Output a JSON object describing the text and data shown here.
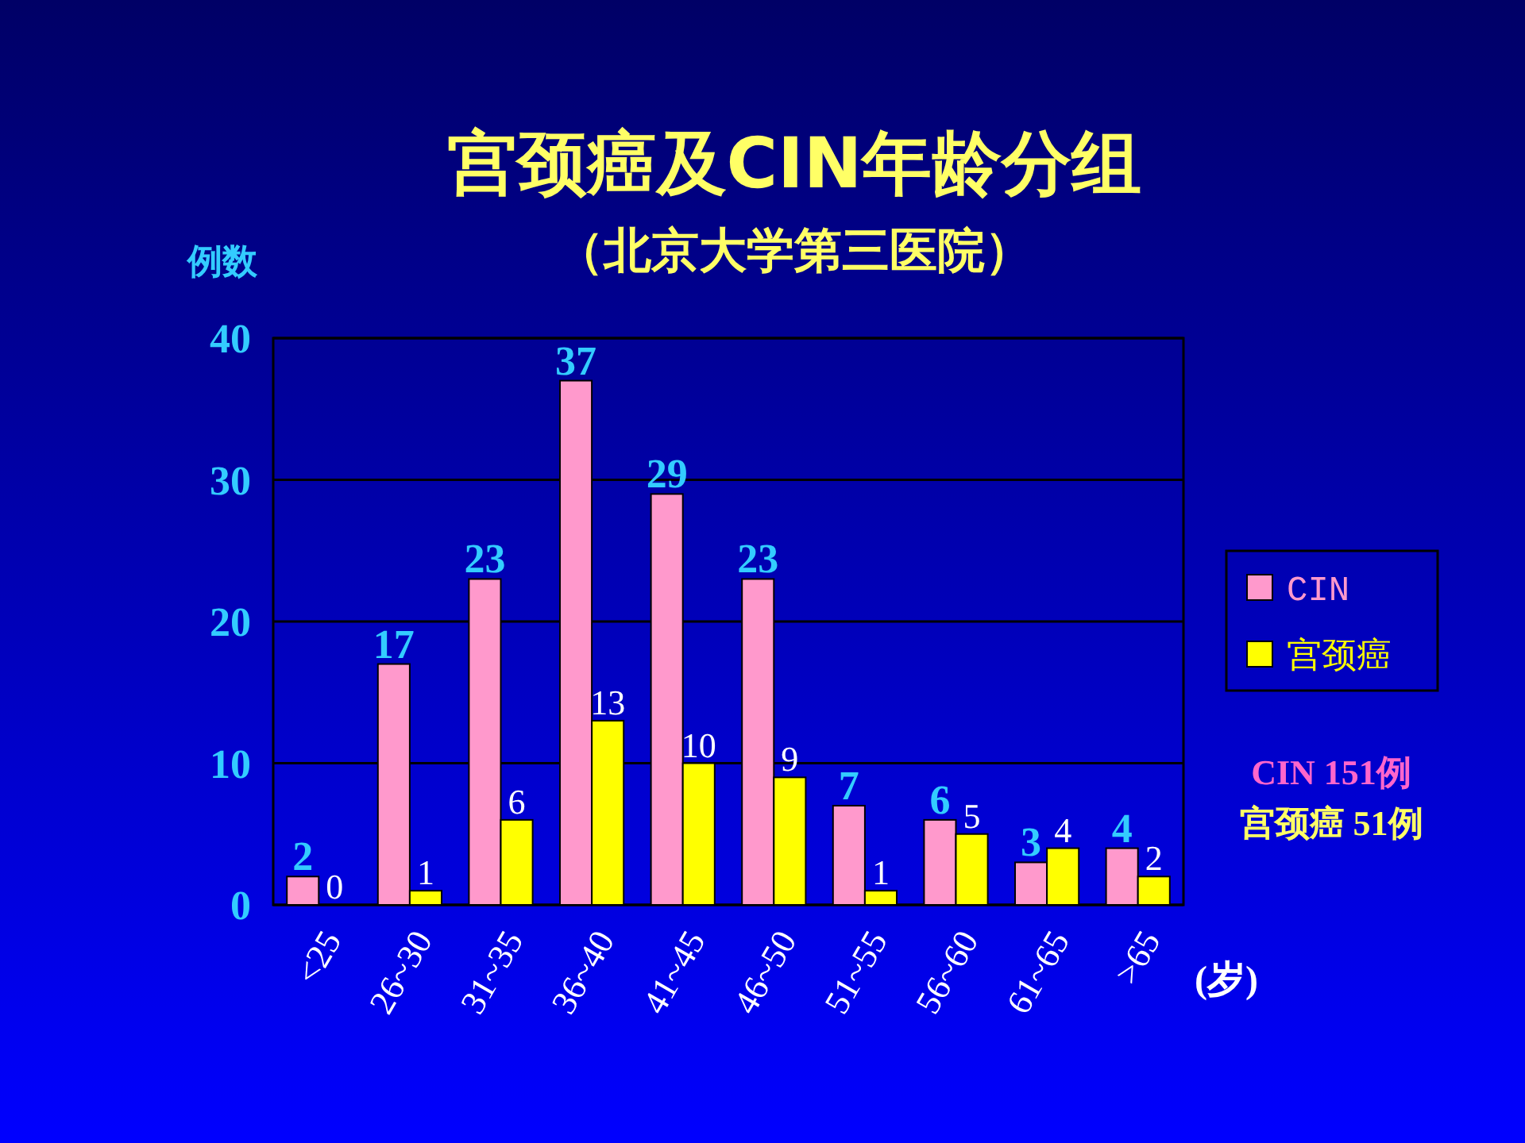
{
  "chart_data": {
    "type": "bar",
    "title": "宫颈癌及CIN年龄分组",
    "subtitle": "（北京大学第三医院）",
    "ylabel": "例数",
    "xlabel": "(岁)",
    "categories": [
      "<25",
      "26~30",
      "31~35",
      "36~40",
      "41~45",
      "46~50",
      "51~55",
      "56~60",
      "61~65",
      ">65"
    ],
    "series": [
      {
        "name": "CIN",
        "color": "#ff99cc",
        "values": [
          2,
          17,
          23,
          37,
          29,
          23,
          7,
          6,
          3,
          4
        ]
      },
      {
        "name": "宫颈癌",
        "color": "#ffff00",
        "values": [
          0,
          1,
          6,
          13,
          10,
          9,
          1,
          5,
          4,
          2
        ]
      }
    ],
    "ylim": [
      0,
      40
    ],
    "yticks": [
      0,
      10,
      20,
      30,
      40
    ],
    "grid": "y",
    "legend": "right",
    "data_labels": true,
    "annotations": [
      "CIN 151例",
      "宫颈癌 51例"
    ]
  }
}
